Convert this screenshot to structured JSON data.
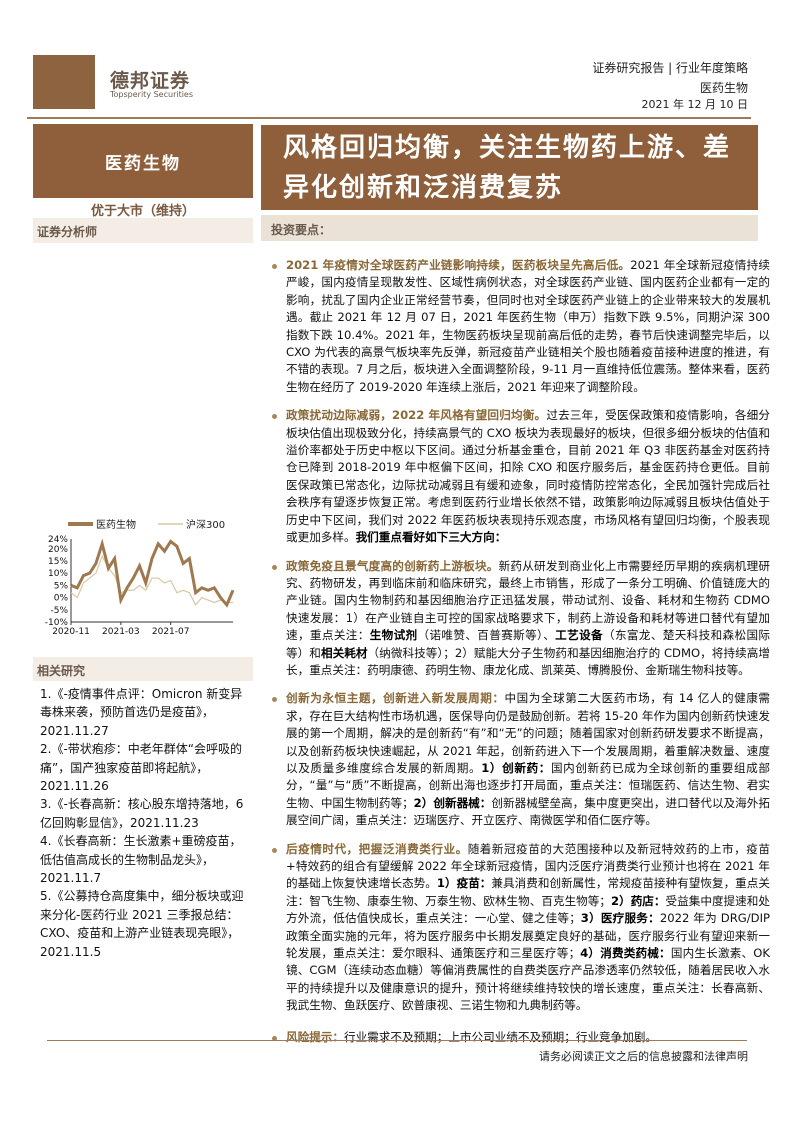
{
  "header": {
    "company_cn": "德邦证券",
    "company_en": "Topsperity Securities",
    "report_type": "证券研究报告 | 行业年度策略",
    "sector": "医药生物",
    "date": "2021 年 12 月 10 日"
  },
  "left": {
    "sector_box": "医药生物",
    "rating": "优于大市（维持）",
    "analyst_label": "证券分析师",
    "related_label": "相关研究",
    "related": [
      "1.《-疫情事件点评：Omicron 新变异毒株来袭，预防首选仍是疫苗》，2021.11.27",
      "2.《-带状疱疹：中老年群体“会呼吸的痛”，国产独家疫苗即将起航》，2021.11.26",
      "3.《-长春高新：核心股东增持落地，6 亿回购彰显信》，2021.11.23",
      "4.《长春高新：生长激素+重磅疫苗，低估值高成长的生物制品龙头》，2021.11.7",
      "5.《公募持仓高度集中，细分板块或迎来分化-医药行业 2021 三季报总结：CXO、疫苗和上游产业链表现亮眼》，2021.11.5"
    ]
  },
  "title": "风格回归均衡，关注生物药上游、差异化创新和泛消费复苏",
  "points_label": "投资要点：",
  "bullets": [
    [
      {
        "t": "2021 年疫情对全球医药产业链影响持续，医药板块呈先高后低。",
        "s": "hd"
      },
      {
        "t": "2021 年全球新冠疫情持续严峻，国内疫情呈现散发性、区域性病例状态，对全球医药产业链、国内医药企业都有一定的影响，扰乱了国内企业正常经营节奏，但同时也对全球医药产业链上的企业带来较大的发展机遇。截止 2021 年 12 月 07 日，2021 年医药生物（申万）指数下跌 9.5%，同期沪深 300 指数下跌 10.4%。2021 年，生物医药板块呈现前高后低的走势，春节后快速调整完毕后，以 CXO 为代表的高景气板块率先反弹，新冠疫苗产业链相关个股也随着疫苗接种进度的推进，有不错的表现。7 月之后，板块进入全面调整阶段，9-11 月一直维持低位震荡。整体来看，医药生物在经历了 2019-2020 年连续上涨后，2021 年迎来了调整阶段。",
        "s": ""
      }
    ],
    [
      {
        "t": "政策扰动边际减弱，2022 年风格有望回归均衡。",
        "s": "hd"
      },
      {
        "t": "过去三年，受医保政策和疫情影响，各细分板块估值出现极致分化，持续高景气的 CXO 板块为表现最好的板块，但很多细分板块的估值和溢价率都处于历史中枢以下区间。通过分析基金重仓，目前 2021 年 Q3 非医药基金对医药持仓已降到 2018-2019 年中枢偏下区间，扣除 CXO 和医疗服务后，基金医药持仓更低。目前医保政策已常态化，边际扰动减弱且有缓和迹象，同时疫情防控常态化，全民加强针完成后社会秩序有望逐步恢复正常。考虑到医药行业增长依然不错，政策影响边际减弱且板块估值处于历史中下区间，我们对 2022 年医药板块表现持乐观态度，市场风格有望回归均衡，个股表现或更加多样。",
        "s": ""
      },
      {
        "t": "我们重点看好如下三大方向：",
        "s": "bd"
      }
    ],
    [
      {
        "t": "政策免疫且景气度高的创新药上游板块。",
        "s": "hd"
      },
      {
        "t": "新药从研发到商业化上市需要经历早期的疾病机理研究、药物研发，再到临床前和临床研究，最终上市销售，形成了一条分工明确、价值链庞大的产业链。国内生物制药和基因细胞治疗正迅猛发展，带动试剂、设备、耗材和生物药 CDMO 快速发展：1）在产业链自主可控的国家战略要求下，制药上游设备和耗材等进口替代有望加速，重点关注：",
        "s": ""
      },
      {
        "t": "生物试剂",
        "s": "bd"
      },
      {
        "t": "（诺唯赞、百普赛斯等）、",
        "s": ""
      },
      {
        "t": "工艺设备",
        "s": "bd"
      },
      {
        "t": "（东富龙、楚天科技和森松国际等）和",
        "s": ""
      },
      {
        "t": "相关耗材",
        "s": "bd"
      },
      {
        "t": "（纳微科技等）；2）赋能大分子生物药和基因细胞治疗的 CDMO，将持续高增长，重点关注：药明康德、药明生物、康龙化成、凯莱英、博腾股份、金斯瑞生物科技等。",
        "s": ""
      }
    ],
    [
      {
        "t": "创新为永恒主题，创新进入新发展周期：",
        "s": "hd"
      },
      {
        "t": "中国为全球第二大医药市场，有 14 亿人的健康需求，存在巨大结构性市场机遇，医保导向仍是鼓励创新。若将 15-20 年作为国内创新药快速发展的第一个周期，解决的是创新药“有”和“无”的问题；随着国家对创新药研发要求不断提高，以及创新药板块快速崛起，从 2021 年起，创新药进入下一个发展周期，着重解决数量、速度以及质量多维度综合发展的新周期。",
        "s": ""
      },
      {
        "t": "1）创新药：",
        "s": "bd"
      },
      {
        "t": "国内创新药已成为全球创新的重要组成部分，“量”与“质”不断提高，创新出海也逐步打开局面，重点关注：恒瑞医药、信达生物、君实生物、中国生物制药等；",
        "s": ""
      },
      {
        "t": "2）创新器械：",
        "s": "bd"
      },
      {
        "t": "创新器械壁垒高，集中度更突出，进口替代以及海外拓展空间广阔，重点关注：迈瑞医疗、开立医疗、南微医学和佰仁医疗等。",
        "s": ""
      }
    ],
    [
      {
        "t": "后疫情时代，把握泛消费类行业。",
        "s": "hd"
      },
      {
        "t": "随着新冠疫苗的大范围接种以及新冠特效药的上市，疫苗+特效药的组合有望缓解 2022 年全球新冠疫情，国内泛医疗消费类行业预计也将在 2021 年的基础上恢复快速增长态势。",
        "s": ""
      },
      {
        "t": "1）疫苗：",
        "s": "bd"
      },
      {
        "t": "兼具消费和创新属性，常规疫苗接种有望恢复，重点关注：智飞生物、康泰生物、万泰生物、欧林生物、百克生物等；",
        "s": ""
      },
      {
        "t": "2）药店：",
        "s": "bd"
      },
      {
        "t": "受益集中度提速和处方外流，低估值快成长，重点关注：一心堂、健之佳等；",
        "s": ""
      },
      {
        "t": "3）医疗服务：",
        "s": "bd"
      },
      {
        "t": "2022 年为 DRG/DIP 政策全面实施的元年，将为医疗服务中长期发展奠定良好的基础，医疗服务行业有望迎来新一轮发展，重点关注：爱尔眼科、通策医疗和三星医疗等；",
        "s": ""
      },
      {
        "t": "4）消费类药械：",
        "s": "bd"
      },
      {
        "t": "国内生长激素、OK 镜、CGM（连续动态血糖）等偏消费属性的自费类医疗产品渗透率仍然较低，随着居民收入水平的持续提升以及健康意识的提升，预计将继续维持较快的增长速度，重点关注：长春高新、我武生物、鱼跃医疗、欧普康视、三诺生物和九典制药等。",
        "s": ""
      }
    ],
    [
      {
        "t": "风险提示：",
        "s": "hd"
      },
      {
        "t": "行业需求不及预期；上市公司业绩不及预期；行业竞争加剧。",
        "s": ""
      }
    ]
  ],
  "footer": "请务必阅读正文之后的信息披露和法律声明",
  "colors": {
    "brand": "#8e5f3a",
    "series1": "#a0784f",
    "series2": "#d9c7a4"
  },
  "chart_data": {
    "type": "line",
    "ylim": [
      -10,
      24
    ],
    "yticks": [
      "24%",
      "20%",
      "15%",
      "10%",
      "5%",
      "0%",
      "-5%",
      "-10%"
    ],
    "ytick_values": [
      24,
      20,
      15,
      10,
      5,
      0,
      -5,
      -10
    ],
    "xticks": [
      "2020-11",
      "2021-03",
      "2021-07"
    ],
    "x": [
      "2020-11-01",
      "2020-11-15",
      "2020-12-01",
      "2020-12-15",
      "2021-01-01",
      "2021-01-15",
      "2021-02-01",
      "2021-02-15",
      "2021-03-01",
      "2021-03-15",
      "2021-04-01",
      "2021-04-15",
      "2021-05-01",
      "2021-05-15",
      "2021-06-01",
      "2021-06-15",
      "2021-07-01",
      "2021-07-15",
      "2021-08-01",
      "2021-08-15",
      "2021-09-01",
      "2021-09-15",
      "2021-10-01",
      "2021-10-15",
      "2021-11-01",
      "2021-11-15",
      "2021-12-01"
    ],
    "series": [
      {
        "name": "医药生物",
        "values": [
          5,
          4,
          9,
          10,
          14,
          22,
          12,
          16,
          -1,
          4,
          8,
          13,
          6,
          16,
          22,
          19,
          23,
          21,
          14,
          16,
          2,
          4,
          3,
          4,
          0,
          -3,
          3
        ]
      },
      {
        "name": "沪深300",
        "values": [
          2,
          0,
          6,
          8,
          10,
          17,
          12,
          9,
          2,
          3,
          3,
          5,
          3,
          8,
          8,
          6,
          7,
          2,
          3,
          2,
          -3,
          0,
          -1,
          -2,
          -1,
          -2,
          -2
        ]
      }
    ]
  }
}
